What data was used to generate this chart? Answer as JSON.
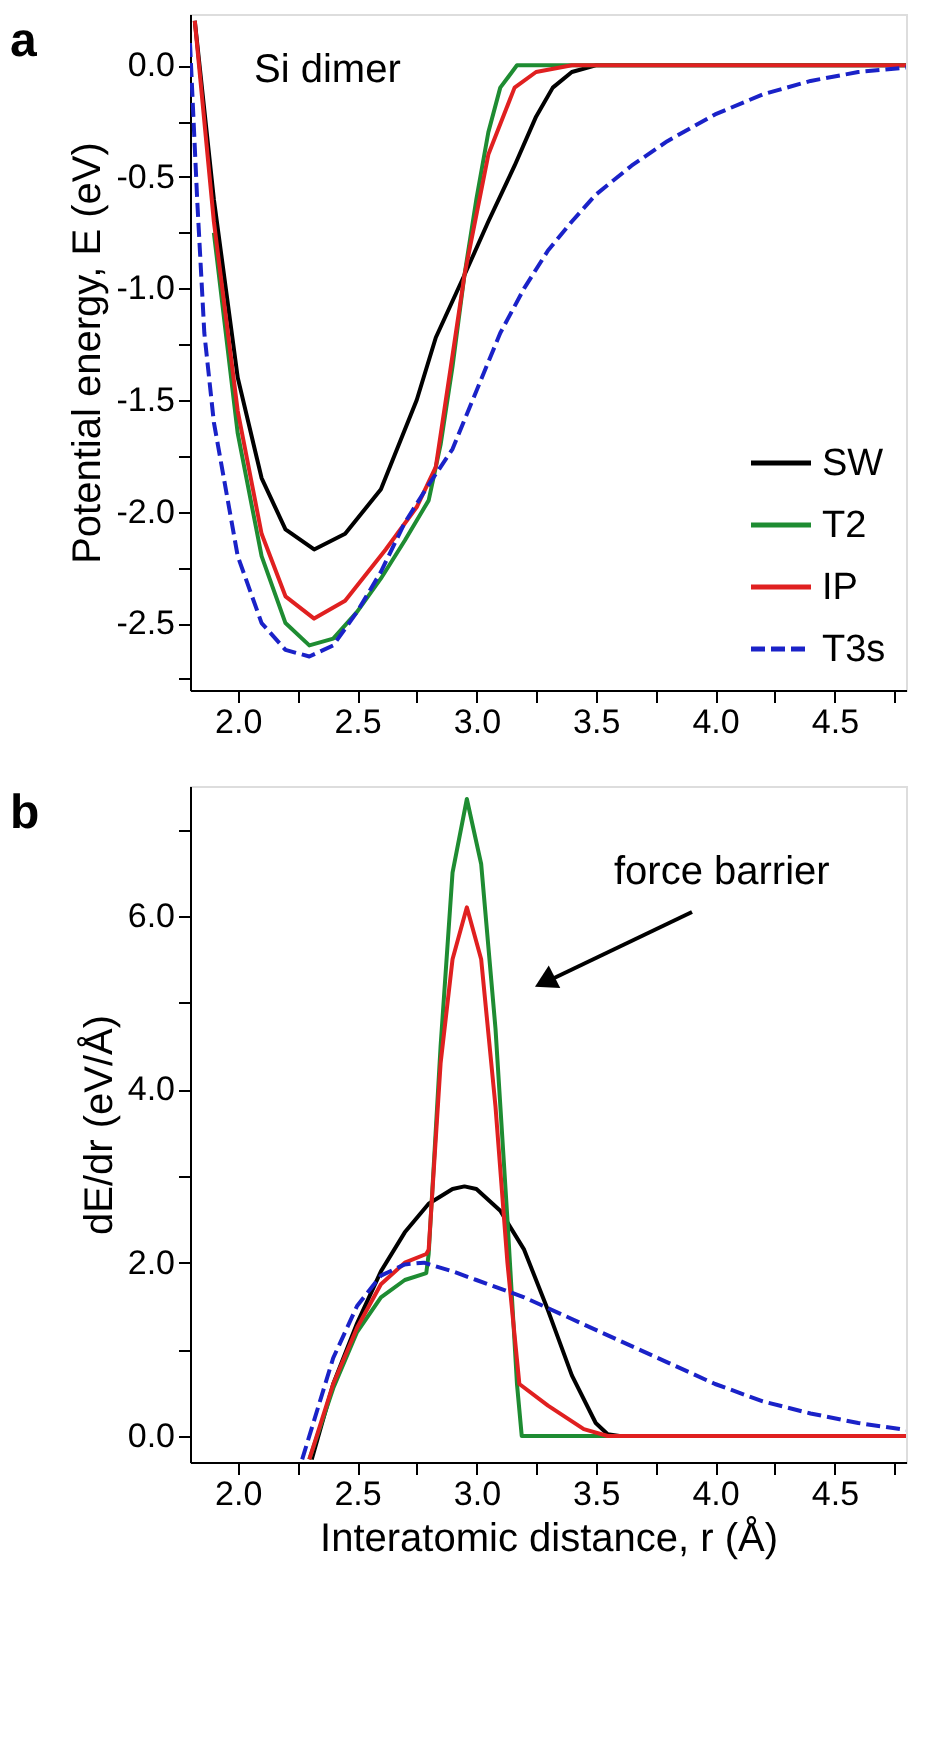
{
  "chart_data": [
    {
      "type": "line",
      "ylabel": "Potential energy, E (eV)",
      "annotations": [
        "a",
        "Si dimer"
      ],
      "legend": "bottom right",
      "grid": false,
      "xlim": [
        1.8,
        4.8
      ],
      "xticks": [
        {
          "value": 2.0,
          "label": "2.0"
        },
        {
          "value": 2.25,
          "label": null
        },
        {
          "value": 2.5,
          "label": "2.5"
        },
        {
          "value": 2.75,
          "label": null
        },
        {
          "value": 3.0,
          "label": "3.0"
        },
        {
          "value": 3.25,
          "label": null
        },
        {
          "value": 3.5,
          "label": "3.5"
        },
        {
          "value": 3.75,
          "label": null
        },
        {
          "value": 4.0,
          "label": "4.0"
        },
        {
          "value": 4.25,
          "label": null
        },
        {
          "value": 4.5,
          "label": "4.5"
        },
        {
          "value": 4.75,
          "label": null
        }
      ],
      "ylim": [
        -2.8,
        0.23
      ],
      "yticks": [
        {
          "value": 0.0,
          "label": "0.0"
        },
        {
          "value": -0.25,
          "label": null
        },
        {
          "value": -0.5,
          "label": "-0.5"
        },
        {
          "value": -0.75,
          "label": null
        },
        {
          "value": -1.0,
          "label": "-1.0"
        },
        {
          "value": -1.25,
          "label": null
        },
        {
          "value": -1.5,
          "label": "-1.5"
        },
        {
          "value": -1.75,
          "label": null
        },
        {
          "value": -2.0,
          "label": "-2.0"
        },
        {
          "value": -2.25,
          "label": null
        },
        {
          "value": -2.5,
          "label": "-2.5"
        },
        {
          "value": -2.75,
          "label": null
        }
      ],
      "series": [
        {
          "name": "SW",
          "color": "#000000",
          "line_style": "solid",
          "x": [
            1.82,
            1.9,
            2.0,
            2.1,
            2.2,
            2.32,
            2.45,
            2.6,
            2.75,
            2.83,
            2.95,
            3.05,
            3.16,
            3.25,
            3.32,
            3.4,
            3.5,
            4.8
          ],
          "values": [
            0.2,
            -0.6,
            -1.4,
            -1.85,
            -2.08,
            -2.17,
            -2.1,
            -1.9,
            -1.5,
            -1.22,
            -0.94,
            -0.7,
            -0.45,
            -0.23,
            -0.1,
            -0.03,
            0.0,
            0.0
          ]
        },
        {
          "name": "T2",
          "color": "#1e8c32",
          "line_style": "solid",
          "x": [
            1.9,
            2.0,
            2.1,
            2.2,
            2.3,
            2.4,
            2.5,
            2.6,
            2.7,
            2.8,
            2.85,
            2.9,
            2.95,
            3.0,
            3.05,
            3.1,
            3.17,
            4.8
          ],
          "values": [
            -0.75,
            -1.65,
            -2.2,
            -2.5,
            -2.6,
            -2.57,
            -2.45,
            -2.3,
            -2.13,
            -1.95,
            -1.7,
            -1.35,
            -0.94,
            -0.6,
            -0.3,
            -0.1,
            0.0,
            0.0
          ]
        },
        {
          "name": "IP",
          "color": "#e02020",
          "line_style": "solid",
          "x": [
            1.82,
            1.9,
            2.0,
            2.1,
            2.2,
            2.32,
            2.45,
            2.62,
            2.75,
            2.83,
            2.9,
            2.95,
            3.05,
            3.16,
            3.25,
            3.4,
            4.8
          ],
          "values": [
            0.2,
            -0.7,
            -1.55,
            -2.1,
            -2.38,
            -2.48,
            -2.4,
            -2.17,
            -1.98,
            -1.8,
            -1.3,
            -0.94,
            -0.4,
            -0.1,
            -0.03,
            0.0,
            0.0
          ]
        },
        {
          "name": "T3s",
          "color": "#1a22c8",
          "line_style": "dashed",
          "x": [
            1.8,
            1.83,
            1.86,
            1.9,
            2.0,
            2.1,
            2.2,
            2.3,
            2.4,
            2.5,
            2.6,
            2.7,
            2.8,
            2.9,
            3.0,
            3.1,
            3.2,
            3.3,
            3.4,
            3.5,
            3.65,
            3.8,
            4.0,
            4.2,
            4.4,
            4.6,
            4.8
          ],
          "values": [
            0.1,
            -0.6,
            -1.2,
            -1.6,
            -2.2,
            -2.5,
            -2.62,
            -2.65,
            -2.6,
            -2.45,
            -2.27,
            -2.05,
            -1.88,
            -1.72,
            -1.46,
            -1.2,
            -1.0,
            -0.83,
            -0.7,
            -0.58,
            -0.45,
            -0.34,
            -0.22,
            -0.13,
            -0.07,
            -0.03,
            -0.01
          ]
        }
      ]
    },
    {
      "type": "line",
      "xlabel": "Interatomic distance, r (Å)",
      "ylabel": "dE/dr (eV/Å)",
      "annotations": [
        "b",
        "force barrier"
      ],
      "grid": false,
      "xlim": [
        1.8,
        4.8
      ],
      "xticks": [
        {
          "value": 2.0,
          "label": "2.0"
        },
        {
          "value": 2.25,
          "label": null
        },
        {
          "value": 2.5,
          "label": "2.5"
        },
        {
          "value": 2.75,
          "label": null
        },
        {
          "value": 3.0,
          "label": "3.0"
        },
        {
          "value": 3.25,
          "label": null
        },
        {
          "value": 3.5,
          "label": "3.5"
        },
        {
          "value": 3.75,
          "label": null
        },
        {
          "value": 4.0,
          "label": "4.0"
        },
        {
          "value": 4.25,
          "label": null
        },
        {
          "value": 4.5,
          "label": "4.5"
        },
        {
          "value": 4.75,
          "label": null
        }
      ],
      "ylim": [
        -0.3,
        7.5
      ],
      "yticks": [
        {
          "value": 0.0,
          "label": "0.0"
        },
        {
          "value": 1.0,
          "label": null
        },
        {
          "value": 2.0,
          "label": "2.0"
        },
        {
          "value": 3.0,
          "label": null
        },
        {
          "value": 4.0,
          "label": "4.0"
        },
        {
          "value": 5.0,
          "label": null
        },
        {
          "value": 6.0,
          "label": "6.0"
        },
        {
          "value": 7.0,
          "label": null
        }
      ],
      "series": [
        {
          "color": "#000000",
          "line_style": "solid",
          "x": [
            2.31,
            2.4,
            2.5,
            2.6,
            2.7,
            2.8,
            2.9,
            2.95,
            3.0,
            3.1,
            3.2,
            3.3,
            3.4,
            3.5,
            3.55,
            3.6,
            4.8
          ],
          "values": [
            -0.27,
            0.6,
            1.3,
            1.9,
            2.35,
            2.68,
            2.85,
            2.88,
            2.85,
            2.6,
            2.15,
            1.45,
            0.7,
            0.15,
            0.02,
            0.0,
            0.0
          ]
        },
        {
          "color": "#1e8c32",
          "line_style": "solid",
          "x": [
            2.3,
            2.4,
            2.5,
            2.6,
            2.7,
            2.79,
            2.8,
            2.85,
            2.9,
            2.96,
            3.02,
            3.08,
            3.13,
            3.17,
            3.19,
            4.8
          ],
          "values": [
            -0.27,
            0.55,
            1.2,
            1.6,
            1.8,
            1.88,
            2.1,
            4.5,
            6.5,
            7.35,
            6.6,
            4.7,
            2.5,
            0.6,
            0.0,
            0.0
          ]
        },
        {
          "color": "#e02020",
          "line_style": "solid",
          "x": [
            2.3,
            2.4,
            2.5,
            2.6,
            2.7,
            2.79,
            2.8,
            2.85,
            2.9,
            2.96,
            3.02,
            3.08,
            3.13,
            3.18,
            3.3,
            3.45,
            3.55,
            4.8
          ],
          "values": [
            -0.27,
            0.6,
            1.25,
            1.75,
            2.0,
            2.1,
            2.15,
            4.3,
            5.5,
            6.1,
            5.5,
            3.8,
            2.0,
            0.6,
            0.35,
            0.08,
            0.0,
            0.0
          ]
        },
        {
          "color": "#1a22c8",
          "line_style": "dashed",
          "x": [
            2.27,
            2.4,
            2.5,
            2.6,
            2.7,
            2.78,
            2.9,
            3.0,
            3.2,
            3.4,
            3.6,
            3.8,
            4.0,
            4.2,
            4.4,
            4.6,
            4.8
          ],
          "values": [
            -0.27,
            0.9,
            1.5,
            1.85,
            1.98,
            2.0,
            1.9,
            1.8,
            1.6,
            1.35,
            1.1,
            0.85,
            0.6,
            0.4,
            0.26,
            0.15,
            0.07
          ]
        }
      ]
    }
  ]
}
